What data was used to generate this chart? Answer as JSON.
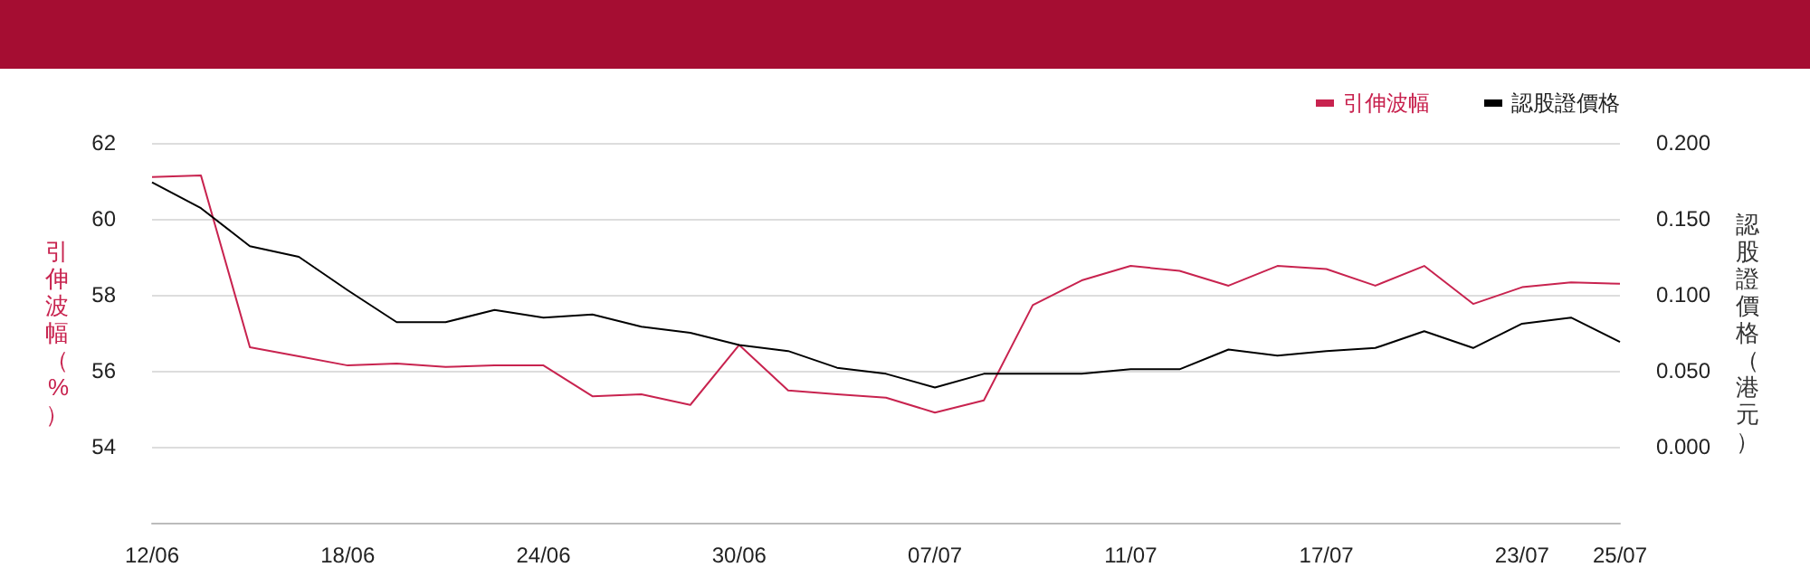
{
  "chart_data": {
    "type": "line",
    "categories": [
      "12/06",
      null,
      null,
      null,
      "18/06",
      null,
      null,
      null,
      "24/06",
      null,
      null,
      null,
      "30/06",
      null,
      null,
      null,
      "07/07",
      null,
      null,
      null,
      "11/07",
      null,
      null,
      null,
      "17/07",
      null,
      null,
      null,
      "23/07",
      null,
      "25/07"
    ],
    "series": [
      {
        "name": "引伸波幅",
        "color": "#c8234f",
        "values": [
          61.1,
          61.14,
          56.62,
          56.38,
          56.14,
          56.19,
          56.1,
          56.14,
          56.14,
          55.33,
          55.38,
          55.1,
          56.68,
          55.48,
          55.38,
          55.29,
          54.9,
          55.22,
          57.73,
          58.38,
          58.76,
          58.63,
          58.24,
          58.76,
          58.68,
          58.24,
          58.76,
          57.76,
          58.2,
          58.33,
          58.29
        ]
      },
      {
        "name": "認股證價格",
        "color": "#000000",
        "axis": "y2",
        "values": [
          0.174,
          0.157,
          0.132,
          0.125,
          0.103,
          0.082,
          0.082,
          0.09,
          0.085,
          0.087,
          0.079,
          0.075,
          0.067,
          0.063,
          0.052,
          0.048,
          0.039,
          0.048,
          0.048,
          0.048,
          0.051,
          0.051,
          0.064,
          0.06,
          0.063,
          0.065,
          0.076,
          0.065,
          0.081,
          0.085,
          0.069
        ]
      }
    ],
    "ylabel": "引伸波幅（%）",
    "y2label": "認股證價格（港元）",
    "ylim": [
      52,
      62
    ],
    "yticks": [
      54,
      56,
      58,
      60,
      62
    ],
    "y2lim": [
      -0.05,
      0.2
    ],
    "y2ticks": [
      {
        "value": 0,
        "label": "0.000"
      },
      {
        "value": 0.05,
        "label": "0.050"
      },
      {
        "value": 0.1,
        "label": "0.100"
      },
      {
        "value": 0.15,
        "label": "0.150"
      },
      {
        "value": 0.2,
        "label": "0.200"
      }
    ],
    "grid": "y",
    "legend": "top right",
    "marker": "none",
    "line_style": "solid"
  }
}
